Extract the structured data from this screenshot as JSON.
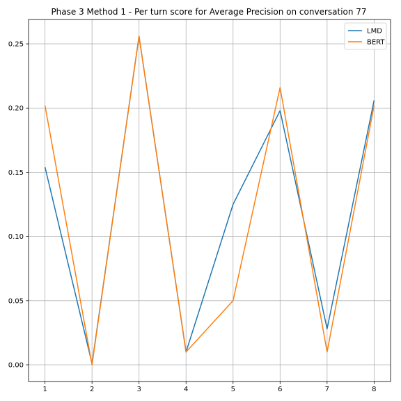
{
  "chart_data": {
    "type": "line",
    "title": "Phase 3 Method 1 - Per turn score for Average Precision on conversation 77",
    "xlabel": "",
    "ylabel": "",
    "x": [
      1,
      2,
      3,
      4,
      5,
      6,
      7,
      8
    ],
    "xticks": [
      "1",
      "2",
      "3",
      "4",
      "5",
      "6",
      "7",
      "8"
    ],
    "xlim": [
      0.65,
      8.35
    ],
    "yticks": [
      "0.00",
      "0.05",
      "0.10",
      "0.15",
      "0.20",
      "0.25"
    ],
    "ytick_values": [
      0,
      0.05,
      0.1,
      0.15,
      0.2,
      0.25
    ],
    "ylim": [
      -0.013,
      0.269
    ],
    "grid": true,
    "legend_position": "top-right",
    "series": [
      {
        "name": "LMD",
        "color": "#1f77b4",
        "values": [
          0.154,
          0.001,
          0.256,
          0.01,
          0.125,
          0.198,
          0.028,
          0.206
        ]
      },
      {
        "name": "BERT",
        "color": "#ff7f0e",
        "values": [
          0.202,
          0.0,
          0.256,
          0.01,
          0.05,
          0.216,
          0.01,
          0.202
        ]
      }
    ]
  }
}
